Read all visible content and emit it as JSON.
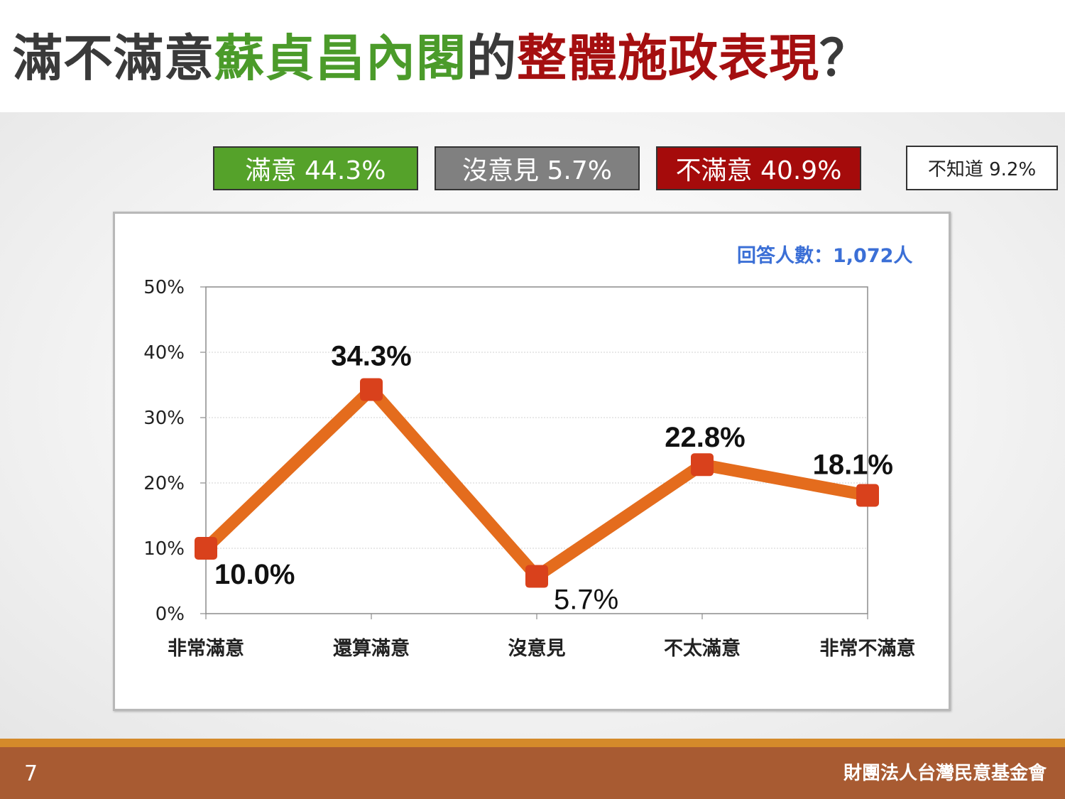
{
  "slide": {
    "title_part1": "滿不滿意",
    "title_part2": "蘇貞昌內閣",
    "title_part3": "的",
    "title_part4": "整體施政表現",
    "title_part5": "？",
    "page_number": "7",
    "organization": "財團法人台灣民意基金會",
    "colors": {
      "green": "#4b9b2a",
      "red": "#a50f10",
      "line": "#e46c1d",
      "marker": "#d9411c",
      "footer": "#a85b32"
    }
  },
  "summary": {
    "satisfied": "滿意 44.3%",
    "no_opinion": "沒意見 5.7%",
    "dissatisfied": "不滿意 40.9%",
    "dont_know": "不知道 9.2%"
  },
  "chart_data": {
    "type": "line",
    "categories": [
      "非常滿意",
      "還算滿意",
      "沒意見",
      "不太滿意",
      "非常不滿意"
    ],
    "values": [
      10.0,
      34.3,
      5.7,
      22.8,
      18.1
    ],
    "data_labels": [
      "10.0%",
      "34.3%",
      "5.7%",
      "22.8%",
      "18.1%"
    ],
    "yticks": [
      "0%",
      "10%",
      "20%",
      "30%",
      "40%",
      "50%"
    ],
    "ylim": [
      0,
      50
    ],
    "grid": true,
    "note": "回答人數：1,072人"
  }
}
